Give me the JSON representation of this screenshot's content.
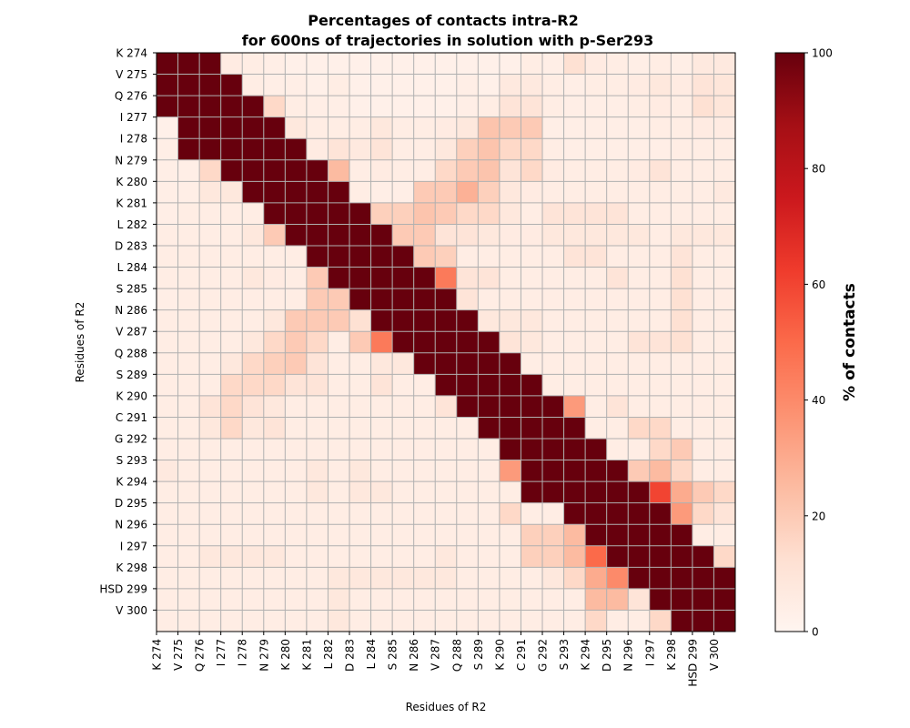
{
  "chart_data": {
    "type": "heatmap",
    "title_line1": "Percentages of contacts intra-R2",
    "title_line2": "for 600ns of trajectories in solution with p-Ser293",
    "xlabel": "Residues of R2",
    "ylabel": "Residues of R2",
    "colorbar_label": "% of contacts",
    "colorbar_ticks": [
      "0",
      "20",
      "40",
      "60",
      "80",
      "100"
    ],
    "colormap": "Reds",
    "value_range": [
      0,
      100
    ],
    "grid": true,
    "residues": [
      "K 274",
      "V 275",
      "Q 276",
      "I 277",
      "I 278",
      "N 279",
      "K 280",
      "K 281",
      "L 282",
      "D 283",
      "L 284",
      "S 285",
      "N 286",
      "V 287",
      "Q 288",
      "S 289",
      "K 290",
      "C 291",
      "G 292",
      "S 293",
      "K 294",
      "D 295",
      "N 296",
      "I 297",
      "K 298",
      "HSD 299",
      "V 300"
    ],
    "matrix": [
      [
        100,
        100,
        100,
        6,
        5,
        4,
        3,
        3,
        3,
        3,
        3,
        3,
        3,
        3,
        3,
        3,
        3,
        5,
        4,
        12,
        6,
        5,
        4,
        5,
        4,
        7,
        7
      ],
      [
        100,
        100,
        100,
        100,
        5,
        4,
        4,
        3,
        5,
        3,
        3,
        3,
        3,
        3,
        4,
        3,
        7,
        7,
        5,
        4,
        5,
        5,
        6,
        8,
        6,
        10,
        9
      ],
      [
        100,
        100,
        100,
        100,
        100,
        15,
        5,
        4,
        4,
        3,
        3,
        3,
        3,
        3,
        4,
        5,
        10,
        10,
        5,
        4,
        4,
        4,
        5,
        6,
        5,
        12,
        9
      ],
      [
        3,
        100,
        100,
        100,
        100,
        100,
        8,
        5,
        5,
        5,
        8,
        5,
        5,
        6,
        8,
        22,
        20,
        20,
        4,
        4,
        4,
        4,
        4,
        5,
        5,
        6,
        6
      ],
      [
        4,
        100,
        100,
        100,
        100,
        100,
        100,
        6,
        10,
        7,
        10,
        5,
        5,
        8,
        18,
        22,
        15,
        15,
        5,
        4,
        4,
        4,
        4,
        4,
        5,
        5,
        5
      ],
      [
        4,
        4,
        15,
        100,
        100,
        100,
        100,
        100,
        25,
        5,
        6,
        5,
        5,
        15,
        20,
        22,
        10,
        15,
        6,
        5,
        5,
        5,
        6,
        10,
        5,
        5,
        5
      ],
      [
        4,
        4,
        8,
        8,
        100,
        100,
        100,
        100,
        100,
        5,
        4,
        4,
        20,
        20,
        28,
        18,
        8,
        6,
        5,
        5,
        5,
        5,
        5,
        5,
        5,
        5,
        7
      ],
      [
        4,
        5,
        5,
        5,
        5,
        100,
        100,
        100,
        100,
        100,
        18,
        18,
        22,
        20,
        15,
        15,
        8,
        5,
        10,
        10,
        10,
        10,
        5,
        5,
        5,
        5,
        5
      ],
      [
        5,
        5,
        5,
        5,
        8,
        20,
        100,
        100,
        100,
        100,
        100,
        20,
        20,
        10,
        10,
        8,
        6,
        6,
        8,
        8,
        8,
        8,
        8,
        5,
        8,
        8,
        8
      ],
      [
        5,
        5,
        5,
        5,
        5,
        5,
        5,
        100,
        100,
        100,
        100,
        100,
        20,
        18,
        5,
        5,
        5,
        5,
        5,
        10,
        10,
        5,
        5,
        5,
        10,
        5,
        5
      ],
      [
        5,
        5,
        5,
        5,
        8,
        6,
        5,
        20,
        100,
        100,
        100,
        100,
        100,
        45,
        10,
        10,
        5,
        5,
        5,
        5,
        5,
        10,
        5,
        5,
        12,
        5,
        5
      ],
      [
        4,
        5,
        5,
        5,
        5,
        5,
        5,
        20,
        20,
        100,
        100,
        100,
        100,
        100,
        10,
        5,
        5,
        5,
        5,
        5,
        5,
        5,
        5,
        5,
        12,
        5,
        5
      ],
      [
        5,
        5,
        5,
        5,
        5,
        8,
        20,
        20,
        20,
        12,
        100,
        100,
        100,
        100,
        100,
        8,
        8,
        8,
        5,
        5,
        5,
        5,
        5,
        5,
        12,
        5,
        5
      ],
      [
        5,
        5,
        5,
        5,
        8,
        15,
        20,
        15,
        5,
        20,
        45,
        100,
        100,
        100,
        100,
        100,
        10,
        8,
        5,
        5,
        5,
        5,
        10,
        10,
        12,
        5,
        5
      ],
      [
        5,
        5,
        5,
        8,
        15,
        18,
        20,
        10,
        5,
        5,
        8,
        8,
        100,
        100,
        100,
        100,
        100,
        5,
        5,
        5,
        5,
        5,
        5,
        5,
        5,
        5,
        5
      ],
      [
        5,
        5,
        5,
        15,
        15,
        15,
        10,
        10,
        5,
        5,
        10,
        5,
        5,
        100,
        100,
        100,
        100,
        100,
        5,
        5,
        5,
        5,
        5,
        5,
        5,
        5,
        5
      ],
      [
        5,
        5,
        10,
        15,
        10,
        8,
        5,
        5,
        5,
        5,
        5,
        5,
        5,
        10,
        100,
        100,
        100,
        100,
        100,
        35,
        5,
        10,
        5,
        5,
        5,
        5,
        5
      ],
      [
        5,
        5,
        8,
        15,
        8,
        10,
        5,
        5,
        5,
        5,
        5,
        5,
        5,
        5,
        5,
        100,
        100,
        100,
        100,
        100,
        5,
        5,
        15,
        15,
        5,
        5,
        5
      ],
      [
        5,
        5,
        5,
        5,
        5,
        5,
        5,
        5,
        5,
        5,
        5,
        5,
        5,
        5,
        5,
        5,
        100,
        100,
        100,
        100,
        100,
        5,
        5,
        15,
        20,
        5,
        5
      ],
      [
        7,
        5,
        5,
        5,
        5,
        5,
        5,
        8,
        5,
        8,
        5,
        5,
        5,
        5,
        5,
        5,
        35,
        100,
        100,
        100,
        100,
        100,
        20,
        25,
        15,
        5,
        5
      ],
      [
        5,
        5,
        5,
        5,
        5,
        5,
        5,
        8,
        5,
        8,
        8,
        5,
        5,
        5,
        5,
        5,
        5,
        100,
        100,
        100,
        100,
        100,
        100,
        60,
        30,
        20,
        15
      ],
      [
        5,
        5,
        5,
        5,
        5,
        5,
        5,
        5,
        5,
        5,
        5,
        5,
        5,
        5,
        5,
        5,
        15,
        5,
        5,
        100,
        100,
        100,
        100,
        100,
        35,
        15,
        10
      ],
      [
        5,
        5,
        5,
        5,
        5,
        5,
        5,
        5,
        5,
        5,
        5,
        5,
        5,
        5,
        5,
        5,
        5,
        18,
        18,
        25,
        100,
        100,
        100,
        100,
        100,
        5,
        5
      ],
      [
        5,
        5,
        8,
        8,
        8,
        8,
        5,
        5,
        5,
        5,
        5,
        5,
        5,
        8,
        5,
        5,
        5,
        18,
        18,
        25,
        50,
        100,
        100,
        100,
        100,
        100,
        15
      ],
      [
        5,
        5,
        5,
        5,
        5,
        5,
        5,
        5,
        8,
        8,
        8,
        8,
        8,
        8,
        5,
        5,
        5,
        5,
        8,
        15,
        30,
        40,
        100,
        100,
        100,
        100,
        100
      ],
      [
        5,
        5,
        5,
        5,
        5,
        5,
        5,
        5,
        8,
        5,
        5,
        5,
        5,
        5,
        5,
        5,
        5,
        5,
        5,
        5,
        25,
        25,
        10,
        100,
        100,
        100,
        100
      ],
      [
        5,
        5,
        5,
        5,
        5,
        5,
        5,
        5,
        8,
        5,
        5,
        5,
        5,
        5,
        5,
        5,
        5,
        5,
        5,
        5,
        15,
        5,
        5,
        15,
        100,
        100,
        100
      ]
    ]
  }
}
